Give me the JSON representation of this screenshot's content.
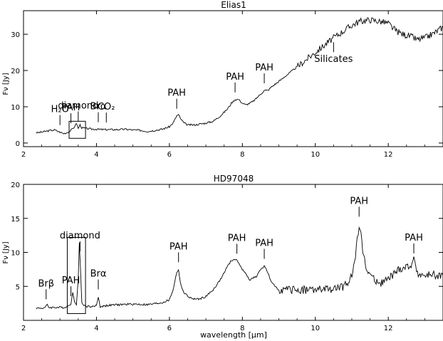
{
  "chart_data": [
    {
      "type": "line",
      "title": "Elias1",
      "xlabel": "",
      "ylabel": "Fν [Jy]",
      "xlim": [
        2,
        13.5
      ],
      "ylim": [
        -1,
        36.5
      ],
      "xticks": [
        2,
        4,
        6,
        8,
        10,
        12
      ],
      "yticks": [
        0,
        10,
        20,
        30
      ],
      "series": [
        {
          "x": [
            2.35,
            2.5,
            2.7,
            2.85,
            3.0,
            3.1,
            3.2,
            3.3,
            3.4,
            3.45,
            3.5,
            3.55,
            3.6,
            3.8,
            4.0,
            4.2,
            4.5,
            4.8,
            5.0,
            5.2,
            5.4,
            5.6,
            5.8,
            6.0,
            6.1,
            6.2,
            6.25,
            6.3,
            6.4,
            6.5,
            6.7,
            7.0,
            7.2,
            7.4,
            7.6,
            7.7,
            7.8,
            7.9,
            8.0,
            8.1,
            8.3,
            8.5,
            8.6,
            8.7,
            8.8,
            9.0,
            9.5,
            10.0,
            10.5,
            11.0,
            11.2,
            11.5,
            11.8,
            12.0,
            12.2,
            12.4,
            12.6,
            12.8,
            13.0,
            13.2,
            13.5
          ],
          "y": [
            2.8,
            3.0,
            3.4,
            3.6,
            3.0,
            2.6,
            2.9,
            3.5,
            4.5,
            5.5,
            4.0,
            5.0,
            4.2,
            3.9,
            3.8,
            3.7,
            3.7,
            3.8,
            3.6,
            3.5,
            3.2,
            3.5,
            3.8,
            4.5,
            5.5,
            7.5,
            7.8,
            6.8,
            5.5,
            5.0,
            5.0,
            5.5,
            6.0,
            7.5,
            9.5,
            11.0,
            12.0,
            12.0,
            11.0,
            10.5,
            11.5,
            13.5,
            14.5,
            14.5,
            15.5,
            17.0,
            21.0,
            25.0,
            29.0,
            32.5,
            33.5,
            34.0,
            33.5,
            33.0,
            31.0,
            30.0,
            29.5,
            28.5,
            29.0,
            30.0,
            32.0
          ]
        }
      ],
      "annotations": [
        {
          "text": "H₂O",
          "x": 3.0
        },
        {
          "text": "PAH",
          "x": 3.3
        },
        {
          "text": "diamond",
          "x": 3.5
        },
        {
          "text": "Brα",
          "x": 4.05
        },
        {
          "text": "CO₂",
          "x": 4.27
        },
        {
          "text": "PAH",
          "x": 6.2
        },
        {
          "text": "PAH",
          "x": 7.8
        },
        {
          "text": "PAH",
          "x": 8.6
        },
        {
          "text": "Silicates",
          "x": 10.5
        }
      ],
      "box": {
        "x": [
          3.25,
          3.7
        ],
        "y": [
          1.3,
          6.0
        ]
      }
    },
    {
      "type": "line",
      "title": "HD97048",
      "xlabel": "wavelength [μm]",
      "ylabel": "Fν [Jy]",
      "xlim": [
        2,
        13.5
      ],
      "ylim": [
        0,
        20
      ],
      "xticks": [
        2,
        4,
        6,
        8,
        10,
        12
      ],
      "yticks": [
        5,
        10,
        15,
        20
      ],
      "series": [
        {
          "x": [
            2.35,
            2.5,
            2.6,
            2.65,
            2.7,
            2.9,
            3.1,
            3.2,
            3.3,
            3.35,
            3.4,
            3.45,
            3.5,
            3.53,
            3.56,
            3.6,
            3.7,
            3.9,
            4.0,
            4.05,
            4.1,
            4.3,
            4.6,
            5.0,
            5.4,
            5.8,
            6.0,
            6.1,
            6.2,
            6.25,
            6.3,
            6.4,
            6.6,
            6.8,
            7.0,
            7.2,
            7.4,
            7.6,
            7.7,
            7.8,
            7.9,
            8.0,
            8.2,
            8.4,
            8.5,
            8.6,
            8.7,
            8.8,
            9.0,
            9.5,
            10.0,
            10.5,
            10.8,
            11.0,
            11.1,
            11.2,
            11.25,
            11.3,
            11.4,
            11.6,
            11.8,
            12.0,
            12.3,
            12.6,
            12.7,
            12.8,
            13.0,
            13.2,
            13.5
          ],
          "y": [
            1.8,
            1.8,
            1.9,
            2.3,
            1.9,
            1.9,
            1.9,
            2.0,
            2.5,
            4.0,
            2.8,
            2.4,
            6.0,
            11.3,
            8.0,
            2.5,
            2.1,
            2.0,
            2.2,
            3.5,
            2.0,
            2.2,
            2.3,
            2.4,
            2.3,
            2.6,
            3.0,
            4.5,
            7.0,
            7.5,
            5.5,
            4.0,
            3.2,
            3.1,
            3.5,
            4.5,
            6.0,
            8.0,
            8.8,
            9.0,
            8.5,
            7.5,
            6.0,
            6.5,
            7.5,
            8.0,
            7.0,
            5.5,
            4.5,
            4.5,
            4.5,
            4.6,
            5.0,
            6.5,
            9.5,
            14.2,
            13.5,
            10.0,
            7.5,
            6.0,
            5.5,
            6.0,
            7.5,
            8.0,
            8.8,
            7.0,
            6.5,
            6.8,
            6.5
          ]
        }
      ],
      "annotations": [
        {
          "text": "Brβ",
          "x": 2.62
        },
        {
          "text": "PAH",
          "x": 3.3
        },
        {
          "text": "diamond",
          "x": 3.55
        },
        {
          "text": "Brα",
          "x": 4.05
        },
        {
          "text": "PAH",
          "x": 6.25
        },
        {
          "text": "PAH",
          "x": 7.85
        },
        {
          "text": "PAH",
          "x": 8.6
        },
        {
          "text": "PAH",
          "x": 11.2
        },
        {
          "text": "PAH",
          "x": 12.7
        }
      ],
      "box": {
        "x": [
          3.2,
          3.7
        ],
        "y": [
          1.0,
          12.2
        ]
      }
    }
  ]
}
